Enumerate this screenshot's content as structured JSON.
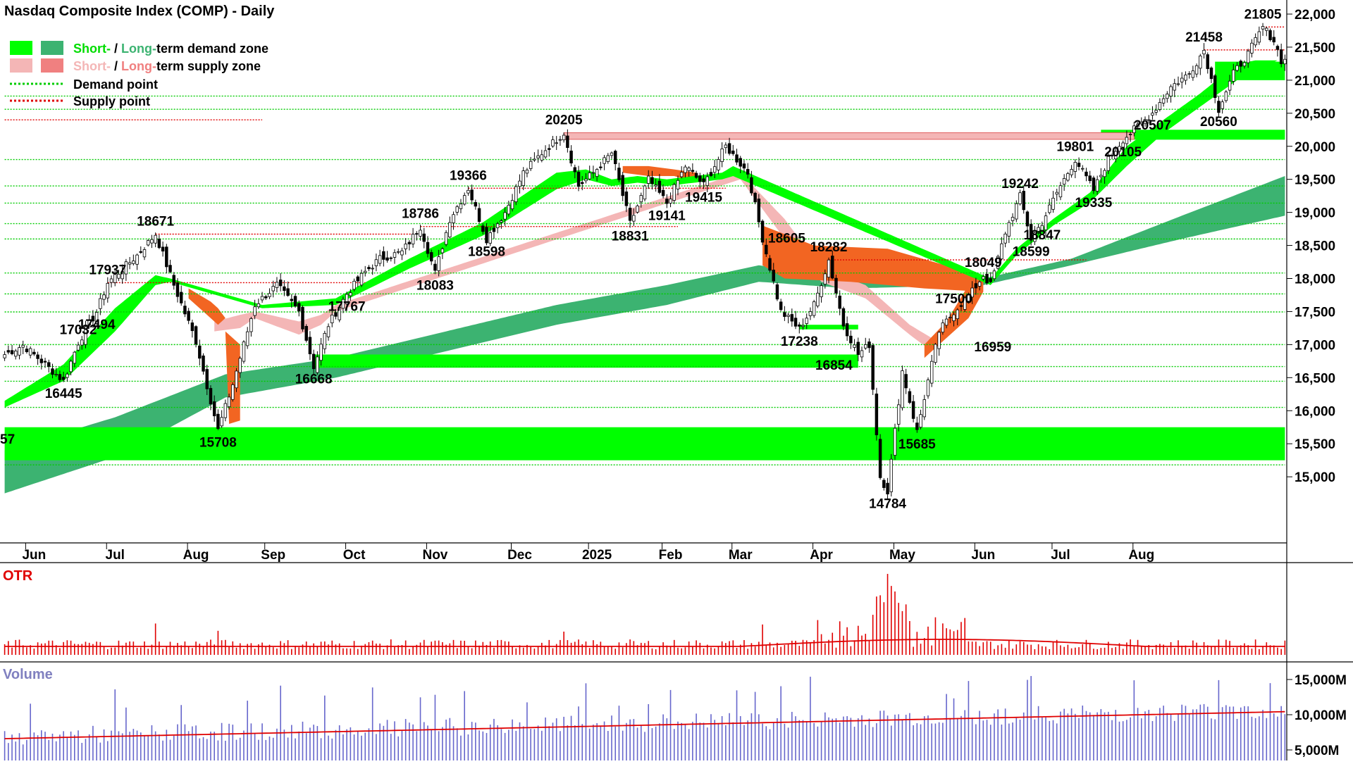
{
  "title": "Nasdaq Composite Index (COMP) - Daily",
  "legend": [
    {
      "short": "Short-",
      "sep": " / ",
      "long": "Long-",
      "rest": "term demand zone",
      "color_short": "#00FF00",
      "color_long": "#3CB371"
    },
    {
      "short": "Short-",
      "sep": " / ",
      "long": "Long-",
      "rest": "term supply zone",
      "color_short": "#F4B6B6",
      "color_long": "#F08080"
    },
    {
      "label": "Demand point",
      "color": "#00CC00"
    },
    {
      "label": "Supply point",
      "color": "#E00000"
    }
  ],
  "colors": {
    "short_demand": "#00FF00",
    "long_demand": "#3CB371",
    "short_supply": "#F4B6B6",
    "orange_zone": "#F26522",
    "demand_dot": "#00CC00",
    "supply_dot": "#E00000",
    "otr": "#E00000",
    "volume": "#6666CC",
    "volume_ma": "#E00000"
  },
  "chart_data": {
    "type": "candlestick",
    "price_axis": {
      "min": 14000,
      "max": 22000,
      "ticks": [
        "22,000",
        "21,500",
        "21,000",
        "20,500",
        "20,000",
        "19,500",
        "19,000",
        "18,500",
        "18,000",
        "17,500",
        "17,000",
        "16,500",
        "16,000",
        "15,500",
        "15,000"
      ],
      "tick_values": [
        22000,
        21500,
        21000,
        20500,
        20000,
        19500,
        19000,
        18500,
        18000,
        17500,
        17000,
        16500,
        16000,
        15500,
        15000
      ]
    },
    "months": [
      "Jun",
      "Jul",
      "Aug",
      "Sep",
      "Oct",
      "Nov",
      "Dec",
      "2025",
      "Feb",
      "Mar",
      "Apr",
      "May",
      "Jun",
      "Jul",
      "Aug"
    ],
    "month_idx": [
      8,
      30,
      52,
      73,
      95,
      117,
      140,
      161,
      181,
      200,
      222,
      244,
      266,
      287,
      309
    ],
    "close_path": [
      [
        0,
        16850
      ],
      [
        5,
        16990
      ],
      [
        10,
        16750
      ],
      [
        16,
        16450
      ],
      [
        20,
        17032
      ],
      [
        25,
        17494
      ],
      [
        28,
        17937
      ],
      [
        36,
        18350
      ],
      [
        41,
        18671
      ],
      [
        46,
        17900
      ],
      [
        52,
        17050
      ],
      [
        58,
        15708
      ],
      [
        62,
        16400
      ],
      [
        68,
        17600
      ],
      [
        74,
        17900
      ],
      [
        80,
        17500
      ],
      [
        84,
        16668
      ],
      [
        88,
        17300
      ],
      [
        93,
        17767
      ],
      [
        98,
        18100
      ],
      [
        102,
        18300
      ],
      [
        108,
        18400
      ],
      [
        113,
        18786
      ],
      [
        117,
        18083
      ],
      [
        121,
        18900
      ],
      [
        126,
        19366
      ],
      [
        131,
        18598
      ],
      [
        136,
        19000
      ],
      [
        141,
        19600
      ],
      [
        146,
        19900
      ],
      [
        152,
        20205
      ],
      [
        156,
        19400
      ],
      [
        160,
        19600
      ],
      [
        165,
        19900
      ],
      [
        170,
        18831
      ],
      [
        175,
        19500
      ],
      [
        180,
        19141
      ],
      [
        185,
        19700
      ],
      [
        190,
        19415
      ],
      [
        196,
        20000
      ],
      [
        202,
        19600
      ],
      [
        206,
        18605
      ],
      [
        211,
        17500
      ],
      [
        216,
        17238
      ],
      [
        220,
        17600
      ],
      [
        224,
        18282
      ],
      [
        228,
        17300
      ],
      [
        232,
        16854
      ],
      [
        235,
        17000
      ],
      [
        238,
        15000
      ],
      [
        240,
        14784
      ],
      [
        244,
        16600
      ],
      [
        248,
        15685
      ],
      [
        250,
        16200
      ],
      [
        254,
        17200
      ],
      [
        258,
        17500
      ],
      [
        263,
        17800
      ],
      [
        266,
        18049
      ],
      [
        268,
        17900
      ],
      [
        272,
        18700
      ],
      [
        276,
        19242
      ],
      [
        279,
        18599
      ],
      [
        282,
        18847
      ],
      [
        286,
        19300
      ],
      [
        291,
        19801
      ],
      [
        296,
        19335
      ],
      [
        300,
        19800
      ],
      [
        304,
        20105
      ],
      [
        308,
        20300
      ],
      [
        312,
        20507
      ],
      [
        317,
        20900
      ],
      [
        322,
        21100
      ],
      [
        326,
        21458
      ],
      [
        330,
        20560
      ],
      [
        334,
        21100
      ],
      [
        338,
        21400
      ],
      [
        342,
        21805
      ],
      [
        345,
        21600
      ],
      [
        347,
        21300
      ]
    ],
    "short_demand_band": [
      [
        0,
        16050,
        16150
      ],
      [
        16,
        16450,
        16700
      ],
      [
        30,
        17200,
        17550
      ],
      [
        41,
        17900,
        18050
      ],
      [
        45,
        17950,
        18000
      ],
      [
        70,
        17550,
        17600
      ],
      [
        90,
        17600,
        17700
      ],
      [
        110,
        18150,
        18300
      ],
      [
        130,
        18650,
        18850
      ],
      [
        150,
        19350,
        19600
      ],
      [
        158,
        19500,
        19650
      ],
      [
        165,
        19400,
        19500
      ],
      [
        172,
        19450,
        19550
      ],
      [
        180,
        19400,
        19500
      ],
      [
        195,
        19500,
        19600
      ],
      [
        198,
        19550,
        19700
      ],
      [
        268,
        17900,
        18000
      ],
      [
        275,
        18350,
        18450
      ],
      [
        285,
        18800,
        18900
      ],
      [
        295,
        19150,
        19300
      ],
      [
        305,
        19700,
        20000
      ],
      [
        315,
        20200,
        20400
      ],
      [
        325,
        20600,
        20800
      ],
      [
        335,
        21000,
        21250
      ],
      [
        340,
        21150,
        21300
      ],
      [
        346,
        21300,
        21300
      ]
    ],
    "short_supply_band": [
      [
        57,
        17200,
        17350
      ],
      [
        64,
        17250,
        17450
      ],
      [
        68,
        17400,
        17500
      ],
      [
        80,
        17150,
        17350
      ],
      [
        86,
        17300,
        17450
      ],
      [
        90,
        17500,
        17600
      ],
      [
        200,
        19500,
        19600
      ],
      [
        212,
        18600,
        18900
      ],
      [
        222,
        17950,
        18150
      ],
      [
        234,
        17700,
        17900
      ],
      [
        246,
        17150,
        17300
      ],
      [
        252,
        16900,
        17100
      ],
      [
        256,
        17200,
        17300
      ],
      [
        266,
        17800,
        17900
      ]
    ],
    "long_demand_band": [
      [
        0,
        14750,
        15400
      ],
      [
        30,
        15300,
        15900
      ],
      [
        60,
        16200,
        16550
      ],
      [
        90,
        16500,
        16800
      ],
      [
        120,
        16900,
        17200
      ],
      [
        150,
        17300,
        17600
      ],
      [
        180,
        17600,
        17900
      ],
      [
        205,
        17950,
        18200
      ],
      [
        230,
        17850,
        18000
      ],
      [
        266,
        17900,
        18000
      ],
      [
        290,
        18200,
        18300
      ],
      [
        320,
        18600,
        18950
      ],
      [
        348,
        18950,
        19550
      ]
    ],
    "orange_zones": [
      [
        [
          50,
          17850
        ],
        [
          56,
          17650
        ],
        [
          58,
          17550
        ],
        [
          60,
          17400
        ],
        [
          58,
          17300
        ],
        [
          54,
          17500
        ],
        [
          50,
          17700
        ]
      ],
      [
        [
          168,
          19600
        ],
        [
          175,
          19550
        ],
        [
          182,
          19550
        ],
        [
          188,
          19450
        ],
        [
          188,
          19600
        ],
        [
          182,
          19650
        ],
        [
          175,
          19700
        ],
        [
          168,
          19700
        ]
      ],
      [
        [
          206,
          18800
        ],
        [
          220,
          18500
        ],
        [
          240,
          18450
        ],
        [
          262,
          18100
        ],
        [
          266,
          18000
        ],
        [
          266,
          17800
        ],
        [
          250,
          17850
        ],
        [
          230,
          17950
        ],
        [
          212,
          18000
        ],
        [
          206,
          18200
        ]
      ],
      [
        [
          60,
          17200
        ],
        [
          61,
          15800
        ],
        [
          64,
          15850
        ],
        [
          64,
          17000
        ]
      ],
      [
        [
          250,
          16800
        ],
        [
          256,
          17100
        ],
        [
          262,
          17400
        ],
        [
          266,
          17800
        ],
        [
          262,
          17900
        ],
        [
          256,
          17350
        ],
        [
          250,
          17000
        ]
      ]
    ],
    "demand_zones": [
      {
        "from": 0,
        "to": 348,
        "low": 15250,
        "high": 15750
      },
      {
        "from": 84,
        "to": 232,
        "low": 16650,
        "high": 16850
      },
      {
        "from": 216,
        "to": 232,
        "low": 17230,
        "high": 17300
      },
      {
        "from": 298,
        "to": 348,
        "low": 20100,
        "high": 20250
      },
      {
        "from": 329,
        "to": 348,
        "low": 21000,
        "high": 21280
      }
    ],
    "supply_zones": [
      {
        "from": 152,
        "to": 307,
        "low": 20105,
        "high": 20205
      }
    ],
    "demand_points": [
      15180,
      16050,
      16445,
      16668,
      17000,
      17494,
      17767,
      18083,
      18598,
      18830,
      19141,
      19400,
      19800,
      20560,
      20760
    ],
    "supply_points": [
      17937,
      18282,
      18671,
      18786,
      19366,
      20400,
      21458,
      21805
    ],
    "labels": [
      {
        "text": "16445",
        "x": 16,
        "y": 16450,
        "pos": "below"
      },
      {
        "text": "17032",
        "x": 20,
        "y": 17032,
        "pos": "above"
      },
      {
        "text": "17494",
        "x": 25,
        "y": 17494,
        "pos": "below"
      },
      {
        "text": "17937",
        "x": 28,
        "y": 17937,
        "pos": "above"
      },
      {
        "text": "18671",
        "x": 41,
        "y": 18671,
        "pos": "above"
      },
      {
        "text": "15708",
        "x": 58,
        "y": 15708,
        "pos": "below"
      },
      {
        "text": "16668",
        "x": 84,
        "y": 16668,
        "pos": "below"
      },
      {
        "text": "17767",
        "x": 93,
        "y": 17767,
        "pos": "below"
      },
      {
        "text": "18786",
        "x": 113,
        "y": 18786,
        "pos": "above"
      },
      {
        "text": "18083",
        "x": 117,
        "y": 18083,
        "pos": "below"
      },
      {
        "text": "19366",
        "x": 126,
        "y": 19366,
        "pos": "above"
      },
      {
        "text": "18598",
        "x": 131,
        "y": 18598,
        "pos": "below"
      },
      {
        "text": "20205",
        "x": 152,
        "y": 20205,
        "pos": "above"
      },
      {
        "text": "18831",
        "x": 170,
        "y": 18831,
        "pos": "below"
      },
      {
        "text": "19141",
        "x": 180,
        "y": 19141,
        "pos": "below"
      },
      {
        "text": "19415",
        "x": 190,
        "y": 19415,
        "pos": "below"
      },
      {
        "text": "18605",
        "x": 206,
        "y": 18605,
        "pos": "right"
      },
      {
        "text": "17238",
        "x": 216,
        "y": 17238,
        "pos": "below"
      },
      {
        "text": "18282",
        "x": 224,
        "y": 18282,
        "pos": "above"
      },
      {
        "text": "16854",
        "x": 232,
        "y": 16854,
        "pos": "left"
      },
      {
        "text": "14784",
        "x": 240,
        "y": 14784,
        "pos": "below"
      },
      {
        "text": "15685",
        "x": 248,
        "y": 15685,
        "pos": "below"
      },
      {
        "text": "17500",
        "x": 258,
        "y": 17500,
        "pos": "above"
      },
      {
        "text": "16959",
        "x": 262,
        "y": 16959,
        "pos": "right"
      },
      {
        "text": "18049",
        "x": 266,
        "y": 18049,
        "pos": "above"
      },
      {
        "text": "19242",
        "x": 276,
        "y": 19242,
        "pos": "above"
      },
      {
        "text": "18599",
        "x": 279,
        "y": 18599,
        "pos": "below"
      },
      {
        "text": "18847",
        "x": 282,
        "y": 18847,
        "pos": "below"
      },
      {
        "text": "19801",
        "x": 291,
        "y": 19801,
        "pos": "above"
      },
      {
        "text": "19335",
        "x": 296,
        "y": 19335,
        "pos": "below"
      },
      {
        "text": "20105",
        "x": 304,
        "y": 20105,
        "pos": "below"
      },
      {
        "text": "20507",
        "x": 312,
        "y": 20507,
        "pos": "below"
      },
      {
        "text": "21458",
        "x": 326,
        "y": 21458,
        "pos": "above"
      },
      {
        "text": "20560",
        "x": 330,
        "y": 20560,
        "pos": "below"
      },
      {
        "text": "21805",
        "x": 342,
        "y": 21805,
        "pos": "above"
      },
      {
        "text": "57",
        "x": 0,
        "y": 15500,
        "pos": "edge"
      }
    ],
    "otr": {
      "label": "OTR"
    },
    "volume": {
      "label": "Volume",
      "ticks": [
        "15,000M",
        "10,000M",
        "5,000M"
      ],
      "tick_values": [
        15000,
        10000,
        5000
      ],
      "ylim": [
        3500,
        17500
      ]
    }
  }
}
